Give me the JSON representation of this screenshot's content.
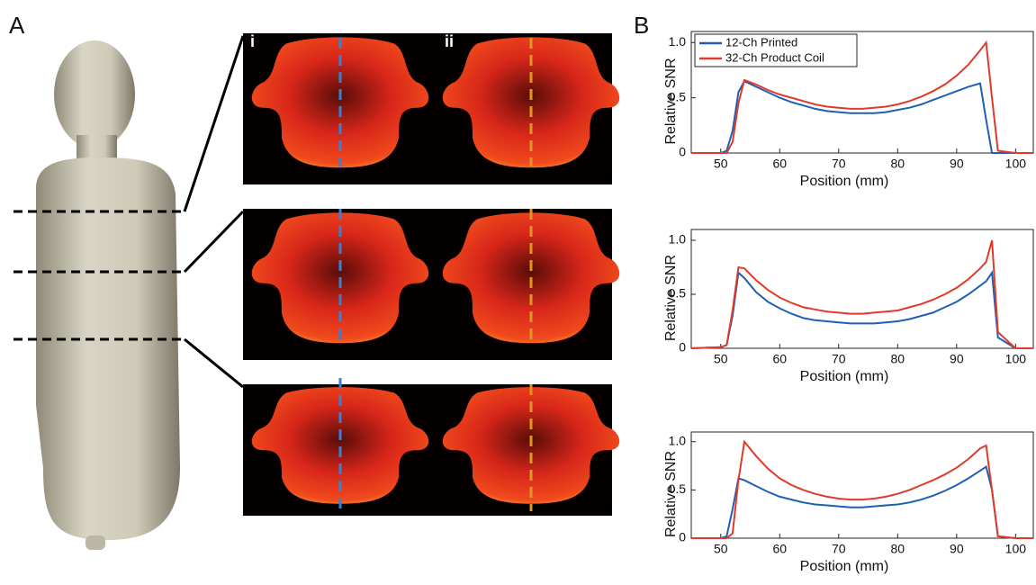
{
  "figure": {
    "panel_labels": [
      "A",
      "B"
    ],
    "image_labels": [
      "i",
      "ii"
    ]
  },
  "chart_data": [
    {
      "type": "line",
      "xlabel": "Position (mm)",
      "ylabel": "Relative SNR",
      "x": [
        45,
        50,
        51,
        52,
        53,
        54,
        56,
        58,
        60,
        62,
        64,
        66,
        68,
        70,
        72,
        74,
        76,
        78,
        80,
        82,
        84,
        86,
        88,
        90,
        92,
        94,
        95,
        96,
        97,
        100,
        103
      ],
      "series": [
        {
          "name": "12-Ch Printed",
          "color": "#1f5fb4",
          "values": [
            0,
            0,
            0.02,
            0.2,
            0.55,
            0.65,
            0.6,
            0.55,
            0.5,
            0.46,
            0.43,
            0.4,
            0.38,
            0.37,
            0.36,
            0.36,
            0.36,
            0.37,
            0.39,
            0.41,
            0.44,
            0.48,
            0.52,
            0.56,
            0.6,
            0.63,
            0.3,
            0,
            0,
            0,
            0
          ]
        },
        {
          "name": "32-Ch Product Coil",
          "color": "#e23a2a",
          "values": [
            0,
            0,
            0,
            0.1,
            0.45,
            0.66,
            0.62,
            0.57,
            0.53,
            0.5,
            0.47,
            0.44,
            0.42,
            0.41,
            0.4,
            0.4,
            0.41,
            0.42,
            0.44,
            0.47,
            0.51,
            0.56,
            0.62,
            0.7,
            0.8,
            0.93,
            1.0,
            0.5,
            0.02,
            0,
            0
          ]
        }
      ],
      "xlim": [
        45,
        103
      ],
      "ylim": [
        0,
        1.1
      ],
      "xticks": [
        50,
        60,
        70,
        80,
        90,
        100
      ],
      "yticks": [
        0,
        0.5,
        {
          "value": 1,
          "label": "1.0"
        }
      ],
      "legend": "upper-left"
    },
    {
      "type": "line",
      "xlabel": "Position (mm)",
      "ylabel": "Relative SNR",
      "x": [
        45,
        50,
        51,
        52,
        53,
        54,
        56,
        58,
        60,
        62,
        64,
        66,
        68,
        70,
        72,
        74,
        76,
        78,
        80,
        82,
        84,
        86,
        88,
        90,
        92,
        94,
        95,
        96,
        97,
        100,
        103
      ],
      "series": [
        {
          "color": "#1f5fb4",
          "values": [
            0,
            0.01,
            0.03,
            0.3,
            0.7,
            0.65,
            0.52,
            0.43,
            0.37,
            0.32,
            0.28,
            0.26,
            0.25,
            0.24,
            0.23,
            0.23,
            0.23,
            0.24,
            0.25,
            0.27,
            0.3,
            0.33,
            0.38,
            0.43,
            0.5,
            0.58,
            0.62,
            0.7,
            0.1,
            0,
            0
          ]
        },
        {
          "color": "#e23a2a",
          "values": [
            0,
            0.01,
            0.03,
            0.35,
            0.75,
            0.74,
            0.63,
            0.54,
            0.47,
            0.42,
            0.38,
            0.36,
            0.34,
            0.33,
            0.32,
            0.32,
            0.33,
            0.34,
            0.35,
            0.38,
            0.41,
            0.45,
            0.5,
            0.56,
            0.64,
            0.74,
            0.8,
            1.0,
            0.15,
            0,
            0
          ]
        }
      ],
      "xlim": [
        45,
        103
      ],
      "ylim": [
        0,
        1.1
      ],
      "xticks": [
        50,
        60,
        70,
        80,
        90,
        100
      ],
      "yticks": [
        0,
        0.5,
        {
          "value": 1,
          "label": "1.0"
        }
      ]
    },
    {
      "type": "line",
      "xlabel": "Position (mm)",
      "ylabel": "Relative SNR",
      "x": [
        45,
        50,
        51,
        52,
        53,
        54,
        56,
        58,
        60,
        62,
        64,
        66,
        68,
        70,
        72,
        74,
        76,
        78,
        80,
        82,
        84,
        86,
        88,
        90,
        92,
        94,
        95,
        96,
        97,
        100,
        103
      ],
      "series": [
        {
          "color": "#1f5fb4",
          "values": [
            0,
            0,
            0.02,
            0.3,
            0.62,
            0.6,
            0.54,
            0.48,
            0.43,
            0.4,
            0.37,
            0.35,
            0.34,
            0.33,
            0.32,
            0.32,
            0.33,
            0.34,
            0.35,
            0.37,
            0.4,
            0.44,
            0.49,
            0.55,
            0.62,
            0.7,
            0.74,
            0.5,
            0.02,
            0,
            0
          ]
        },
        {
          "color": "#e23a2a",
          "values": [
            0,
            0,
            0,
            0.05,
            0.6,
            1.0,
            0.85,
            0.72,
            0.62,
            0.55,
            0.5,
            0.46,
            0.43,
            0.41,
            0.4,
            0.4,
            0.41,
            0.43,
            0.46,
            0.5,
            0.55,
            0.6,
            0.66,
            0.73,
            0.82,
            0.93,
            0.96,
            0.5,
            0.02,
            0,
            0
          ]
        }
      ],
      "xlim": [
        45,
        103
      ],
      "ylim": [
        0,
        1.1
      ],
      "xticks": [
        50,
        60,
        70,
        80,
        90,
        100
      ],
      "yticks": [
        0,
        0.5,
        {
          "value": 1,
          "label": "1.0"
        }
      ]
    }
  ]
}
